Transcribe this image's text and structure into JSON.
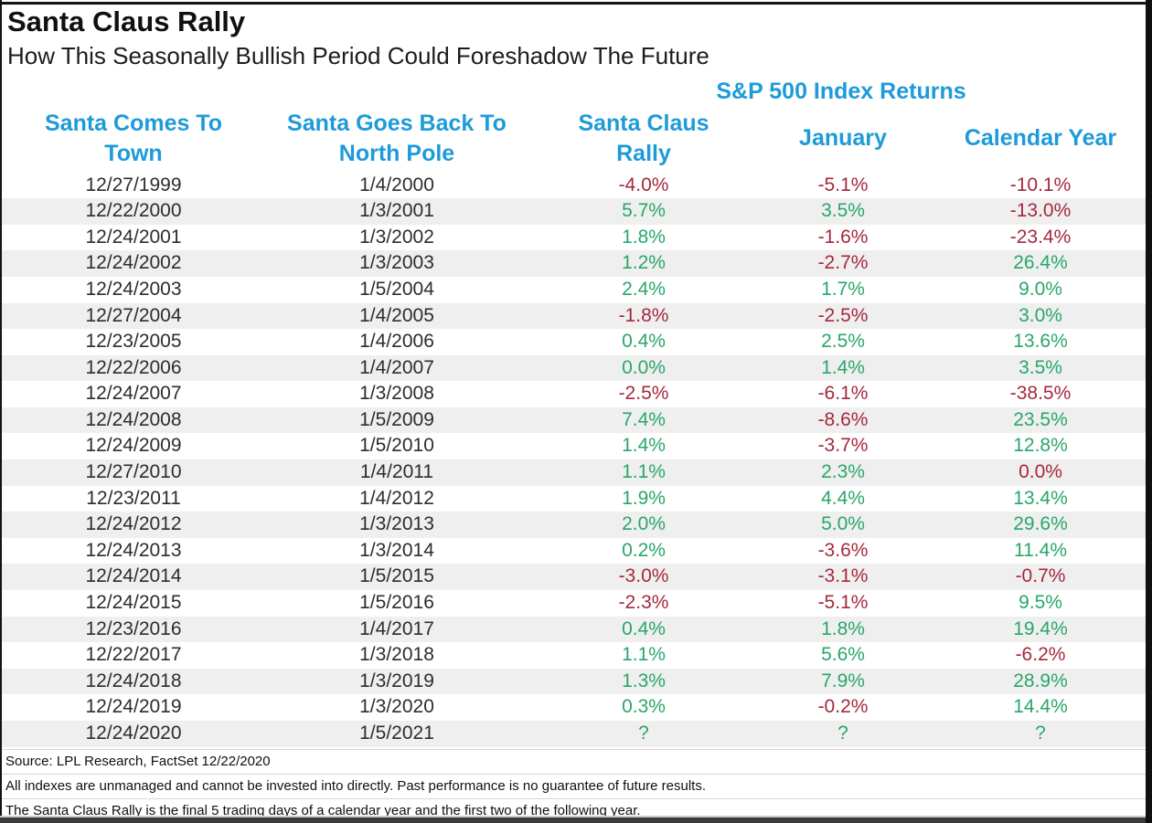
{
  "colors": {
    "accent_blue": "#1d9bd8",
    "positive_green": "#28a769",
    "negative_red": "#a5293c",
    "stripe_gray": "#efefef"
  },
  "header": {
    "title": "Santa Claus Rally",
    "subtitle": "How This Seasonally Bullish Period Could Foreshadow The Future"
  },
  "table": {
    "group_header": "S&P 500 Index Returns",
    "columns": [
      {
        "label": "Santa Comes To\nTown"
      },
      {
        "label": "Santa Goes Back To\nNorth Pole"
      },
      {
        "label": "Santa Claus\nRally"
      },
      {
        "label": "January"
      },
      {
        "label": "Calendar Year"
      }
    ],
    "rows": [
      {
        "comes_to_town": "12/27/1999",
        "north_pole": "1/4/2000",
        "rally": {
          "v": "-4.0%",
          "s": "neg"
        },
        "january": {
          "v": "-5.1%",
          "s": "neg"
        },
        "calendar_year": {
          "v": "-10.1%",
          "s": "neg"
        }
      },
      {
        "comes_to_town": "12/22/2000",
        "north_pole": "1/3/2001",
        "rally": {
          "v": "5.7%",
          "s": "pos"
        },
        "january": {
          "v": "3.5%",
          "s": "pos"
        },
        "calendar_year": {
          "v": "-13.0%",
          "s": "neg"
        }
      },
      {
        "comes_to_town": "12/24/2001",
        "north_pole": "1/3/2002",
        "rally": {
          "v": "1.8%",
          "s": "pos"
        },
        "january": {
          "v": "-1.6%",
          "s": "neg"
        },
        "calendar_year": {
          "v": "-23.4%",
          "s": "neg"
        }
      },
      {
        "comes_to_town": "12/24/2002",
        "north_pole": "1/3/2003",
        "rally": {
          "v": "1.2%",
          "s": "pos"
        },
        "january": {
          "v": "-2.7%",
          "s": "neg"
        },
        "calendar_year": {
          "v": "26.4%",
          "s": "pos"
        }
      },
      {
        "comes_to_town": "12/24/2003",
        "north_pole": "1/5/2004",
        "rally": {
          "v": "2.4%",
          "s": "pos"
        },
        "january": {
          "v": "1.7%",
          "s": "pos"
        },
        "calendar_year": {
          "v": "9.0%",
          "s": "pos"
        }
      },
      {
        "comes_to_town": "12/27/2004",
        "north_pole": "1/4/2005",
        "rally": {
          "v": "-1.8%",
          "s": "neg"
        },
        "january": {
          "v": "-2.5%",
          "s": "neg"
        },
        "calendar_year": {
          "v": "3.0%",
          "s": "pos"
        }
      },
      {
        "comes_to_town": "12/23/2005",
        "north_pole": "1/4/2006",
        "rally": {
          "v": "0.4%",
          "s": "pos"
        },
        "january": {
          "v": "2.5%",
          "s": "pos"
        },
        "calendar_year": {
          "v": "13.6%",
          "s": "pos"
        }
      },
      {
        "comes_to_town": "12/22/2006",
        "north_pole": "1/4/2007",
        "rally": {
          "v": "0.0%",
          "s": "pos"
        },
        "january": {
          "v": "1.4%",
          "s": "pos"
        },
        "calendar_year": {
          "v": "3.5%",
          "s": "pos"
        }
      },
      {
        "comes_to_town": "12/24/2007",
        "north_pole": "1/3/2008",
        "rally": {
          "v": "-2.5%",
          "s": "neg"
        },
        "january": {
          "v": "-6.1%",
          "s": "neg"
        },
        "calendar_year": {
          "v": "-38.5%",
          "s": "neg"
        }
      },
      {
        "comes_to_town": "12/24/2008",
        "north_pole": "1/5/2009",
        "rally": {
          "v": "7.4%",
          "s": "pos"
        },
        "january": {
          "v": "-8.6%",
          "s": "neg"
        },
        "calendar_year": {
          "v": "23.5%",
          "s": "pos"
        }
      },
      {
        "comes_to_town": "12/24/2009",
        "north_pole": "1/5/2010",
        "rally": {
          "v": "1.4%",
          "s": "pos"
        },
        "january": {
          "v": "-3.7%",
          "s": "neg"
        },
        "calendar_year": {
          "v": "12.8%",
          "s": "pos"
        }
      },
      {
        "comes_to_town": "12/27/2010",
        "north_pole": "1/4/2011",
        "rally": {
          "v": "1.1%",
          "s": "pos"
        },
        "january": {
          "v": "2.3%",
          "s": "pos"
        },
        "calendar_year": {
          "v": "0.0%",
          "s": "neg"
        }
      },
      {
        "comes_to_town": "12/23/2011",
        "north_pole": "1/4/2012",
        "rally": {
          "v": "1.9%",
          "s": "pos"
        },
        "january": {
          "v": "4.4%",
          "s": "pos"
        },
        "calendar_year": {
          "v": "13.4%",
          "s": "pos"
        }
      },
      {
        "comes_to_town": "12/24/2012",
        "north_pole": "1/3/2013",
        "rally": {
          "v": "2.0%",
          "s": "pos"
        },
        "january": {
          "v": "5.0%",
          "s": "pos"
        },
        "calendar_year": {
          "v": "29.6%",
          "s": "pos"
        }
      },
      {
        "comes_to_town": "12/24/2013",
        "north_pole": "1/3/2014",
        "rally": {
          "v": "0.2%",
          "s": "pos"
        },
        "january": {
          "v": "-3.6%",
          "s": "neg"
        },
        "calendar_year": {
          "v": "11.4%",
          "s": "pos"
        }
      },
      {
        "comes_to_town": "12/24/2014",
        "north_pole": "1/5/2015",
        "rally": {
          "v": "-3.0%",
          "s": "neg"
        },
        "january": {
          "v": "-3.1%",
          "s": "neg"
        },
        "calendar_year": {
          "v": "-0.7%",
          "s": "neg"
        }
      },
      {
        "comes_to_town": "12/24/2015",
        "north_pole": "1/5/2016",
        "rally": {
          "v": "-2.3%",
          "s": "neg"
        },
        "january": {
          "v": "-5.1%",
          "s": "neg"
        },
        "calendar_year": {
          "v": "9.5%",
          "s": "pos"
        }
      },
      {
        "comes_to_town": "12/23/2016",
        "north_pole": "1/4/2017",
        "rally": {
          "v": "0.4%",
          "s": "pos"
        },
        "january": {
          "v": "1.8%",
          "s": "pos"
        },
        "calendar_year": {
          "v": "19.4%",
          "s": "pos"
        }
      },
      {
        "comes_to_town": "12/22/2017",
        "north_pole": "1/3/2018",
        "rally": {
          "v": "1.1%",
          "s": "pos"
        },
        "january": {
          "v": "5.6%",
          "s": "pos"
        },
        "calendar_year": {
          "v": "-6.2%",
          "s": "neg"
        }
      },
      {
        "comes_to_town": "12/24/2018",
        "north_pole": "1/3/2019",
        "rally": {
          "v": "1.3%",
          "s": "pos"
        },
        "january": {
          "v": "7.9%",
          "s": "pos"
        },
        "calendar_year": {
          "v": "28.9%",
          "s": "pos"
        }
      },
      {
        "comes_to_town": "12/24/2019",
        "north_pole": "1/3/2020",
        "rally": {
          "v": "0.3%",
          "s": "pos"
        },
        "january": {
          "v": "-0.2%",
          "s": "neg"
        },
        "calendar_year": {
          "v": "14.4%",
          "s": "pos"
        }
      },
      {
        "comes_to_town": "12/24/2020",
        "north_pole": "1/5/2021",
        "rally": {
          "v": "?",
          "s": "pos"
        },
        "january": {
          "v": "?",
          "s": "pos"
        },
        "calendar_year": {
          "v": "?",
          "s": "pos"
        }
      }
    ]
  },
  "footer": {
    "source": "Source: LPL Research, FactSet 12/22/2020",
    "disclaimer_1": "All indexes are unmanaged and cannot be invested into directly. Past performance is no guarantee of future results.",
    "disclaimer_2": "The Santa Claus Rally is the final 5 trading days of a calendar year and the first two of the following year."
  },
  "chart_data": {
    "type": "table",
    "title": "Santa Claus Rally",
    "subtitle": "How This Seasonally Bullish Period Could Foreshadow The Future",
    "group_header": "S&P 500 Index Returns",
    "columns": [
      "Santa Comes To Town",
      "Santa Goes Back To North Pole",
      "Santa Claus Rally (%)",
      "January (%)",
      "Calendar Year (%)"
    ],
    "rows": [
      [
        "12/27/1999",
        "1/4/2000",
        -4.0,
        -5.1,
        -10.1
      ],
      [
        "12/22/2000",
        "1/3/2001",
        5.7,
        3.5,
        -13.0
      ],
      [
        "12/24/2001",
        "1/3/2002",
        1.8,
        -1.6,
        -23.4
      ],
      [
        "12/24/2002",
        "1/3/2003",
        1.2,
        -2.7,
        26.4
      ],
      [
        "12/24/2003",
        "1/5/2004",
        2.4,
        1.7,
        9.0
      ],
      [
        "12/27/2004",
        "1/4/2005",
        -1.8,
        -2.5,
        3.0
      ],
      [
        "12/23/2005",
        "1/4/2006",
        0.4,
        2.5,
        13.6
      ],
      [
        "12/22/2006",
        "1/4/2007",
        0.0,
        1.4,
        3.5
      ],
      [
        "12/24/2007",
        "1/3/2008",
        -2.5,
        -6.1,
        -38.5
      ],
      [
        "12/24/2008",
        "1/5/2009",
        7.4,
        -8.6,
        23.5
      ],
      [
        "12/24/2009",
        "1/5/2010",
        1.4,
        -3.7,
        12.8
      ],
      [
        "12/27/2010",
        "1/4/2011",
        1.1,
        2.3,
        0.0
      ],
      [
        "12/23/2011",
        "1/4/2012",
        1.9,
        4.4,
        13.4
      ],
      [
        "12/24/2012",
        "1/3/2013",
        2.0,
        5.0,
        29.6
      ],
      [
        "12/24/2013",
        "1/3/2014",
        0.2,
        -3.6,
        11.4
      ],
      [
        "12/24/2014",
        "1/5/2015",
        -3.0,
        -3.1,
        -0.7
      ],
      [
        "12/24/2015",
        "1/5/2016",
        -2.3,
        -5.1,
        9.5
      ],
      [
        "12/23/2016",
        "1/4/2017",
        0.4,
        1.8,
        19.4
      ],
      [
        "12/22/2017",
        "1/3/2018",
        1.1,
        5.6,
        -6.2
      ],
      [
        "12/24/2018",
        "1/3/2019",
        1.3,
        7.9,
        28.9
      ],
      [
        "12/24/2019",
        "1/3/2020",
        0.3,
        -0.2,
        14.4
      ],
      [
        "12/24/2020",
        "1/5/2021",
        "?",
        "?",
        "?"
      ]
    ],
    "value_color_rule": "negative values dark red, positive values green; exceptions: rally 0.0% (2006) green, calendar year 0.0% (2010) red, '?' row green"
  }
}
